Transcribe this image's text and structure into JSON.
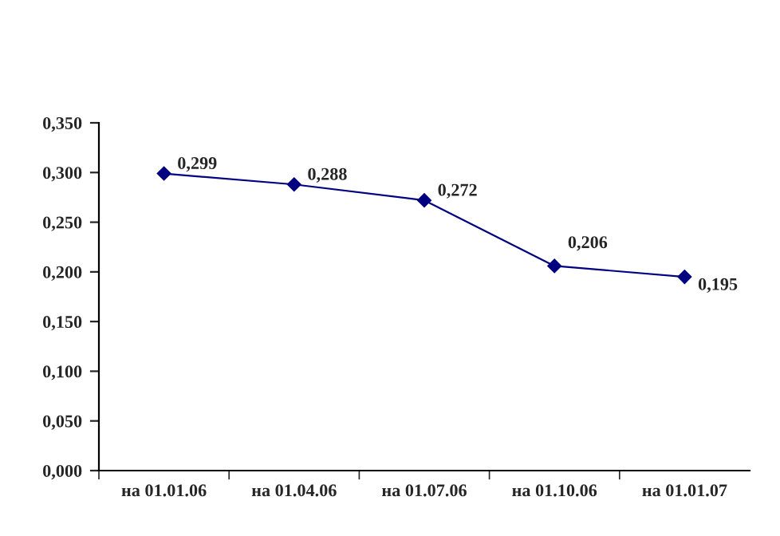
{
  "chart_data": {
    "type": "line",
    "categories": [
      "на 01.01.06",
      "на 01.04.06",
      "на 01.07.06",
      "на 01.10.06",
      "на 01.01.07"
    ],
    "series": [
      {
        "color": "#000080",
        "values": [
          0.299,
          0.288,
          0.272,
          0.206,
          0.195
        ]
      }
    ],
    "value_labels": [
      "0,299",
      "0,288",
      "0,272",
      "0,206",
      "0,195"
    ],
    "ylim": [
      0,
      0.35
    ],
    "yticks": [
      {
        "value": 0,
        "label": "0,000"
      },
      {
        "value": 0.05,
        "label": "0,050"
      },
      {
        "value": 0.1,
        "label": "0,100"
      },
      {
        "value": 0.15,
        "label": "0,150"
      },
      {
        "value": 0.2,
        "label": "0,200"
      },
      {
        "value": 0.25,
        "label": "0,250"
      },
      {
        "value": 0.3,
        "label": "0,300"
      },
      {
        "value": 0.35,
        "label": "0,350"
      }
    ],
    "marker": "diamond",
    "line_style": "solid",
    "grid": false,
    "legend": false
  }
}
